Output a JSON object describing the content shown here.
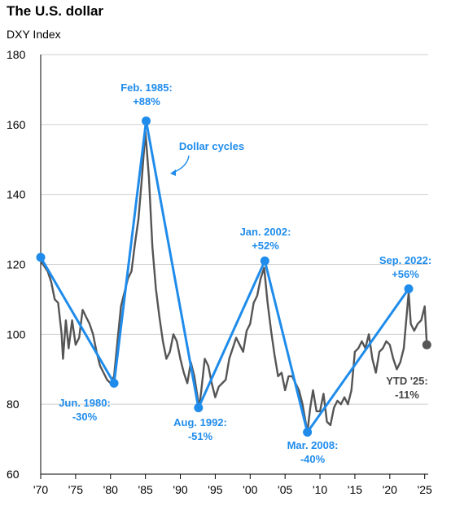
{
  "title": "The U.S. dollar",
  "subtitle": "DXY Index",
  "colors": {
    "index_line": "#555555",
    "cycle_line": "#1f8ceb",
    "annotation": "#1f8ceb",
    "ytd_text": "#444444",
    "grid": "#cfcfcf"
  },
  "chart_data": {
    "type": "line",
    "title": "The U.S. dollar",
    "subtitle": "DXY Index",
    "xlabel": "",
    "ylabel": "",
    "xlim": [
      1970,
      2025.5
    ],
    "ylim": [
      60,
      180
    ],
    "yticks": [
      60,
      80,
      100,
      120,
      140,
      160,
      180
    ],
    "xticks": [
      {
        "value": 1970,
        "label": "'70"
      },
      {
        "value": 1975,
        "label": "'75"
      },
      {
        "value": 1980,
        "label": "'80"
      },
      {
        "value": 1985,
        "label": "'85"
      },
      {
        "value": 1990,
        "label": "'90"
      },
      {
        "value": 1995,
        "label": "'95"
      },
      {
        "value": 2000,
        "label": "'00"
      },
      {
        "value": 2005,
        "label": "'05"
      },
      {
        "value": 2010,
        "label": "'10"
      },
      {
        "value": 2015,
        "label": "'15"
      },
      {
        "value": 2020,
        "label": "'20"
      },
      {
        "value": 2025,
        "label": "'25"
      }
    ],
    "grid": "horizontal",
    "series": [
      {
        "values": [
          [
            1970,
            121
          ],
          [
            1971,
            118
          ],
          [
            1971.5,
            115
          ],
          [
            1972,
            110
          ],
          [
            1972.5,
            109
          ],
          [
            1973,
            100
          ],
          [
            1973.2,
            93
          ],
          [
            1973.6,
            104
          ],
          [
            1974,
            96
          ],
          [
            1974.5,
            104
          ],
          [
            1975,
            97
          ],
          [
            1975.5,
            99
          ],
          [
            1976,
            107
          ],
          [
            1976.5,
            105
          ],
          [
            1977,
            103
          ],
          [
            1977.5,
            100
          ],
          [
            1978,
            95
          ],
          [
            1978.5,
            91
          ],
          [
            1979,
            89
          ],
          [
            1979.5,
            87
          ],
          [
            1980,
            86
          ],
          [
            1980.5,
            88
          ],
          [
            1981,
            98
          ],
          [
            1981.5,
            108
          ],
          [
            1982,
            112
          ],
          [
            1982.5,
            116
          ],
          [
            1983,
            118
          ],
          [
            1983.5,
            126
          ],
          [
            1984,
            133
          ],
          [
            1984.5,
            145
          ],
          [
            1985,
            158
          ],
          [
            1985.5,
            145
          ],
          [
            1986,
            125
          ],
          [
            1986.5,
            113
          ],
          [
            1987,
            105
          ],
          [
            1987.5,
            98
          ],
          [
            1988,
            93
          ],
          [
            1988.5,
            95
          ],
          [
            1989,
            100
          ],
          [
            1989.5,
            98
          ],
          [
            1990,
            93
          ],
          [
            1990.5,
            89
          ],
          [
            1991,
            86
          ],
          [
            1991.5,
            92
          ],
          [
            1992,
            88
          ],
          [
            1992.7,
            79
          ],
          [
            1993,
            84
          ],
          [
            1993.5,
            93
          ],
          [
            1994,
            91
          ],
          [
            1994.5,
            86
          ],
          [
            1995,
            82
          ],
          [
            1995.5,
            85
          ],
          [
            1996,
            86
          ],
          [
            1996.5,
            87
          ],
          [
            1997,
            93
          ],
          [
            1997.5,
            96
          ],
          [
            1998,
            99
          ],
          [
            1998.5,
            97
          ],
          [
            1999,
            95
          ],
          [
            1999.5,
            101
          ],
          [
            2000,
            103
          ],
          [
            2000.5,
            109
          ],
          [
            2001,
            111
          ],
          [
            2001.5,
            116
          ],
          [
            2002,
            119
          ],
          [
            2002.5,
            109
          ],
          [
            2003,
            101
          ],
          [
            2003.5,
            94
          ],
          [
            2004,
            88
          ],
          [
            2004.5,
            89
          ],
          [
            2005,
            84
          ],
          [
            2005.5,
            88
          ],
          [
            2006,
            88
          ],
          [
            2006.5,
            86
          ],
          [
            2007,
            84
          ],
          [
            2007.5,
            80
          ],
          [
            2008.2,
            72
          ],
          [
            2008.6,
            79
          ],
          [
            2009,
            84
          ],
          [
            2009.5,
            78
          ],
          [
            2010,
            78
          ],
          [
            2010.5,
            83
          ],
          [
            2011,
            75
          ],
          [
            2011.5,
            74
          ],
          [
            2012,
            79
          ],
          [
            2012.5,
            81
          ],
          [
            2013,
            80
          ],
          [
            2013.5,
            82
          ],
          [
            2014,
            80
          ],
          [
            2014.5,
            84
          ],
          [
            2015,
            95
          ],
          [
            2015.5,
            96
          ],
          [
            2016,
            98
          ],
          [
            2016.5,
            96
          ],
          [
            2017,
            100
          ],
          [
            2017.5,
            93
          ],
          [
            2018,
            89
          ],
          [
            2018.5,
            95
          ],
          [
            2019,
            96
          ],
          [
            2019.5,
            98
          ],
          [
            2020,
            97
          ],
          [
            2020.5,
            93
          ],
          [
            2021,
            90
          ],
          [
            2021.5,
            92
          ],
          [
            2022,
            96
          ],
          [
            2022.7,
            112
          ],
          [
            2023,
            103
          ],
          [
            2023.5,
            101
          ],
          [
            2024,
            103
          ],
          [
            2024.5,
            104
          ],
          [
            2025,
            108
          ],
          [
            2025.3,
            97
          ]
        ]
      },
      {
        "type": "cycles",
        "values": [
          [
            1970,
            122
          ],
          [
            1980.5,
            86
          ],
          [
            1985.1,
            161
          ],
          [
            1992.6,
            79
          ],
          [
            2002.1,
            121
          ],
          [
            2008.2,
            72
          ],
          [
            2022.7,
            113
          ]
        ]
      }
    ],
    "end_point": {
      "x": 2025.3,
      "y": 97
    },
    "annotations": [
      {
        "lines": [
          "Feb. 1985:",
          "+88%"
        ]
      },
      {
        "lines": [
          "Jun. 1980:",
          "-30%"
        ]
      },
      {
        "lines": [
          "Aug. 1992:",
          "-51%"
        ]
      },
      {
        "lines": [
          "Jan. 2002:",
          "+52%"
        ]
      },
      {
        "lines": [
          "Mar. 2008:",
          "-40%"
        ]
      },
      {
        "lines": [
          "Sep. 2022:",
          "+56%"
        ]
      },
      {
        "lines": [
          "Dollar cycles"
        ]
      },
      {
        "lines": [
          "YTD '25:",
          "-11%"
        ]
      }
    ]
  }
}
